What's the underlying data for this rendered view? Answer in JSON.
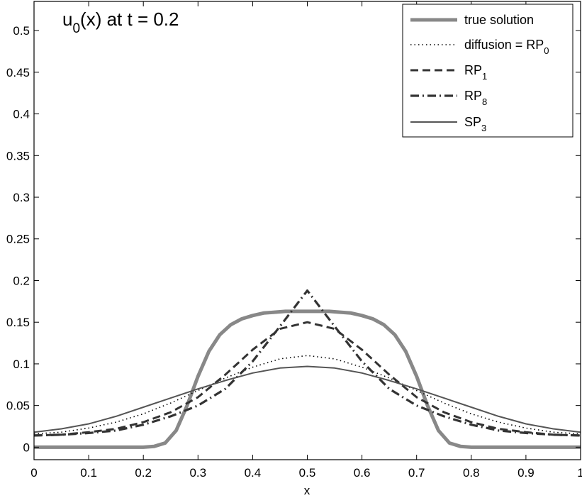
{
  "chart_data": {
    "type": "line",
    "title": "u0(x) at t = 0.2",
    "title_main": "u",
    "title_sub": "0",
    "title_rest": "(x) at t = 0.2",
    "xlabel": "x",
    "ylabel": "",
    "xlim": [
      0,
      1
    ],
    "ylim": [
      -0.015,
      0.535
    ],
    "xticks": [
      0,
      0.1,
      0.2,
      0.3,
      0.4,
      0.5,
      0.6,
      0.7,
      0.8,
      0.9,
      1
    ],
    "xtick_labels": [
      "0",
      "0.1",
      "0.2",
      "0.3",
      "0.4",
      "0.5",
      "0.6",
      "0.7",
      "0.8",
      "0.9",
      "1"
    ],
    "yticks": [
      0,
      0.05,
      0.1,
      0.15,
      0.2,
      0.25,
      0.3,
      0.35,
      0.4,
      0.45,
      0.5
    ],
    "ytick_labels": [
      "0",
      "0.05",
      "0.1",
      "0.15",
      "0.2",
      "0.25",
      "0.3",
      "0.35",
      "0.4",
      "0.45",
      "0.5"
    ],
    "grid": false,
    "legend_position": "top-right",
    "series": [
      {
        "name": "true solution",
        "label_main": "true solution",
        "label_sub": "",
        "color": "#888888",
        "style": "solid-thick",
        "x": [
          0,
          0.1,
          0.2,
          0.22,
          0.24,
          0.26,
          0.28,
          0.3,
          0.32,
          0.34,
          0.36,
          0.38,
          0.4,
          0.42,
          0.44,
          0.46,
          0.48,
          0.5,
          0.52,
          0.54,
          0.56,
          0.58,
          0.6,
          0.62,
          0.64,
          0.66,
          0.68,
          0.7,
          0.72,
          0.74,
          0.76,
          0.78,
          0.8,
          0.9,
          1
        ],
        "y": [
          0,
          0,
          0,
          0.001,
          0.005,
          0.02,
          0.05,
          0.085,
          0.115,
          0.135,
          0.147,
          0.154,
          0.158,
          0.161,
          0.162,
          0.163,
          0.163,
          0.163,
          0.163,
          0.163,
          0.162,
          0.161,
          0.158,
          0.154,
          0.147,
          0.135,
          0.115,
          0.085,
          0.05,
          0.02,
          0.005,
          0.001,
          0,
          0,
          0
        ]
      },
      {
        "name": "diffusion = RP0",
        "label_main": "diffusion = RP",
        "label_sub": "0",
        "color": "#000000",
        "style": "dotted",
        "x": [
          0,
          0.05,
          0.1,
          0.15,
          0.2,
          0.25,
          0.3,
          0.35,
          0.4,
          0.45,
          0.5,
          0.55,
          0.6,
          0.65,
          0.7,
          0.75,
          0.8,
          0.85,
          0.9,
          0.95,
          1
        ],
        "y": [
          0.016,
          0.018,
          0.023,
          0.03,
          0.04,
          0.053,
          0.068,
          0.083,
          0.096,
          0.106,
          0.11,
          0.106,
          0.096,
          0.083,
          0.068,
          0.053,
          0.04,
          0.03,
          0.023,
          0.018,
          0.016
        ]
      },
      {
        "name": "RP1",
        "label_main": "RP",
        "label_sub": "1",
        "color": "#333333",
        "style": "dashed",
        "x": [
          0,
          0.05,
          0.1,
          0.15,
          0.2,
          0.25,
          0.3,
          0.35,
          0.4,
          0.45,
          0.5,
          0.55,
          0.6,
          0.65,
          0.7,
          0.75,
          0.8,
          0.85,
          0.9,
          0.95,
          1
        ],
        "y": [
          0.014,
          0.015,
          0.018,
          0.022,
          0.03,
          0.042,
          0.06,
          0.087,
          0.117,
          0.142,
          0.15,
          0.142,
          0.117,
          0.087,
          0.06,
          0.042,
          0.03,
          0.022,
          0.018,
          0.015,
          0.014
        ]
      },
      {
        "name": "RP8",
        "label_main": "RP",
        "label_sub": "8",
        "color": "#333333",
        "style": "dashdot",
        "x": [
          0,
          0.05,
          0.1,
          0.15,
          0.2,
          0.25,
          0.3,
          0.35,
          0.4,
          0.45,
          0.5,
          0.55,
          0.6,
          0.65,
          0.7,
          0.75,
          0.8,
          0.85,
          0.9,
          0.95,
          1
        ],
        "y": [
          0.014,
          0.015,
          0.017,
          0.02,
          0.027,
          0.037,
          0.05,
          0.07,
          0.103,
          0.145,
          0.188,
          0.145,
          0.103,
          0.07,
          0.05,
          0.037,
          0.027,
          0.02,
          0.017,
          0.015,
          0.014
        ]
      },
      {
        "name": "SP3",
        "label_main": "SP",
        "label_sub": "3",
        "color": "#555555",
        "style": "solid-thin",
        "x": [
          0,
          0.05,
          0.1,
          0.15,
          0.2,
          0.25,
          0.3,
          0.35,
          0.4,
          0.45,
          0.5,
          0.55,
          0.6,
          0.65,
          0.7,
          0.75,
          0.8,
          0.85,
          0.9,
          0.95,
          1
        ],
        "y": [
          0.018,
          0.022,
          0.028,
          0.037,
          0.048,
          0.059,
          0.07,
          0.08,
          0.089,
          0.095,
          0.097,
          0.095,
          0.089,
          0.08,
          0.07,
          0.059,
          0.048,
          0.037,
          0.028,
          0.022,
          0.018
        ]
      }
    ]
  }
}
